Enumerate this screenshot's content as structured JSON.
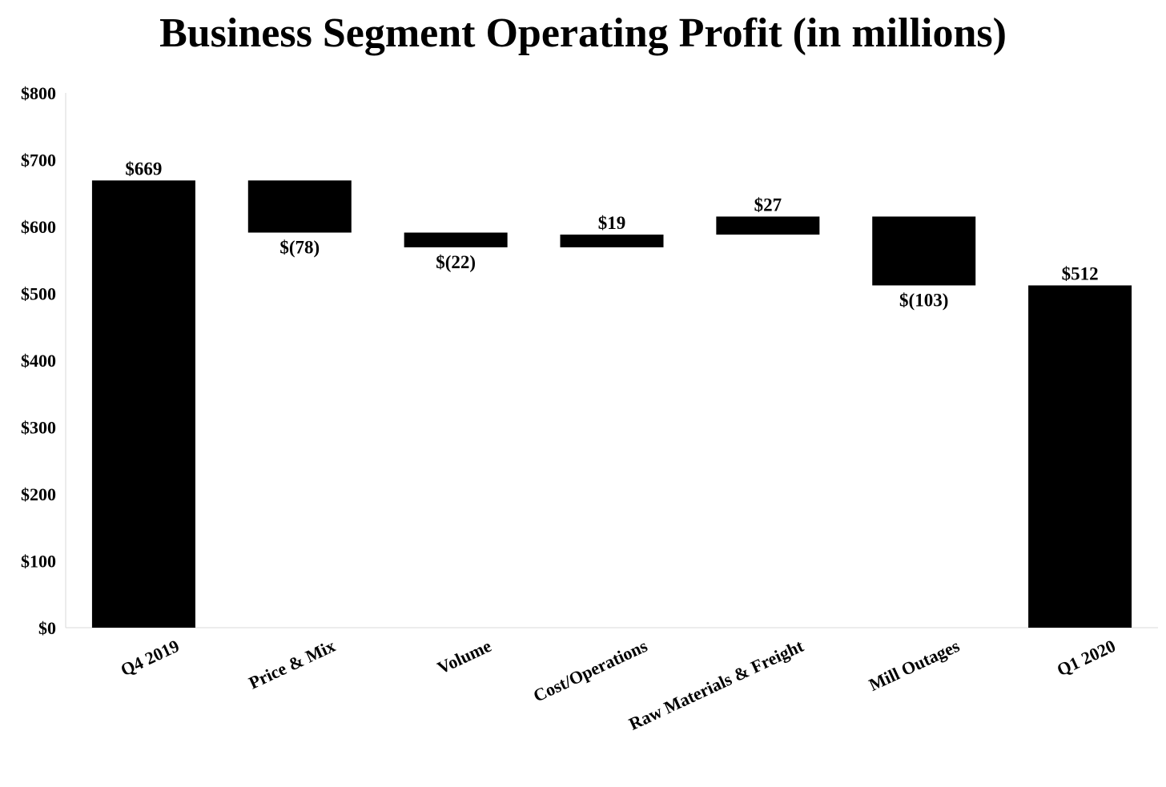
{
  "chart_data": {
    "type": "bar",
    "subtype": "waterfall",
    "title": "Business Segment Operating Profit (in millions)",
    "xlabel": "",
    "ylabel": "",
    "ylim": [
      0,
      800
    ],
    "yticks": [
      0,
      100,
      200,
      300,
      400,
      500,
      600,
      700,
      800
    ],
    "ytick_labels": [
      "$0",
      "$100",
      "$200",
      "$300",
      "$400",
      "$500",
      "$600",
      "$700",
      "$800"
    ],
    "grid": false,
    "legend": "none",
    "bar_color": "#000000",
    "categories": [
      "Q4 2019",
      "Price & Mix",
      "Volume",
      "Cost/Operations",
      "Raw Materials & Freight",
      "Mill Outages",
      "Q1 2020"
    ],
    "kinds": [
      "total",
      "delta",
      "delta",
      "delta",
      "delta",
      "delta",
      "total"
    ],
    "values": [
      669,
      -78,
      -22,
      19,
      27,
      -103,
      512
    ],
    "data_labels": [
      "$669",
      "$(78)",
      "$(22)",
      "$19",
      "$27",
      "$(103)",
      "$512"
    ]
  }
}
